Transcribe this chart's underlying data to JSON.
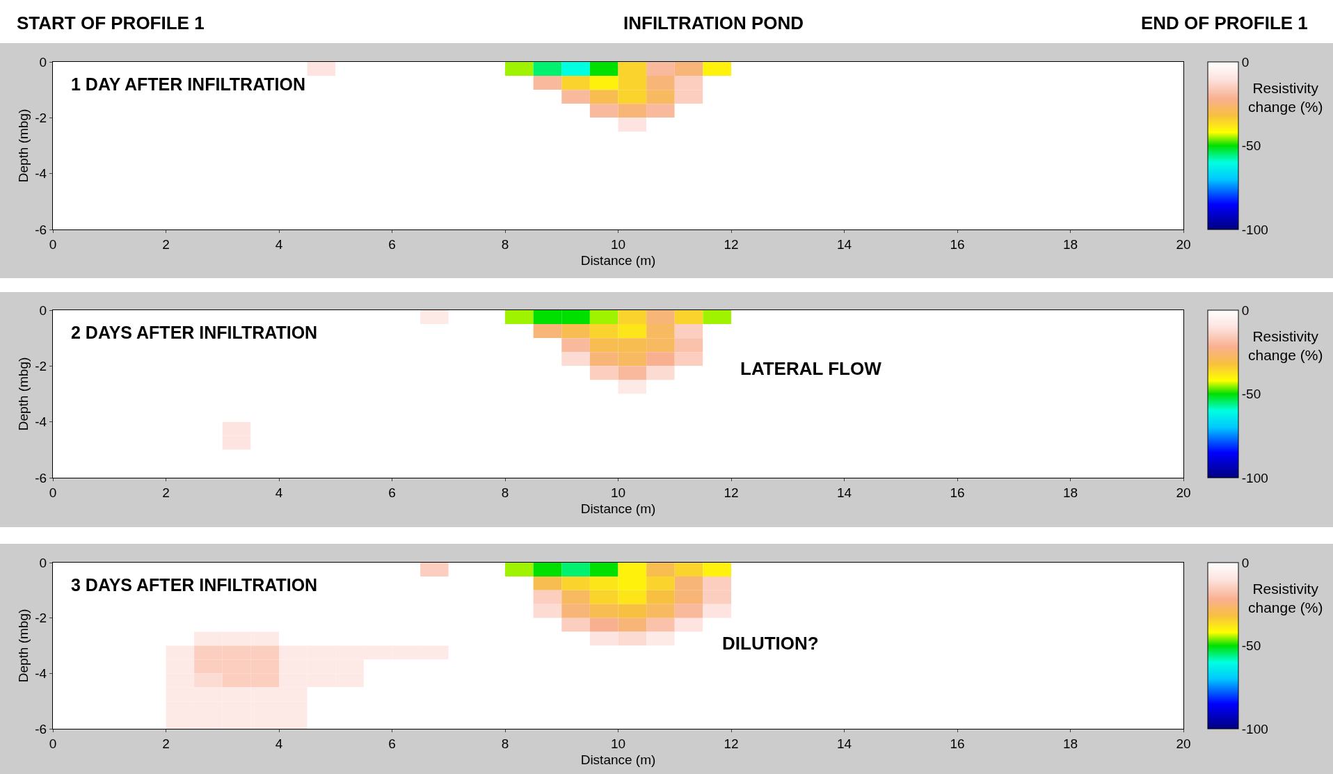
{
  "chart_data": [
    {
      "type": "heatmap",
      "title": "1 DAY AFTER INFILTRATION",
      "xlabel": "Distance (m)",
      "ylabel": "Depth (mbg)",
      "clabel": "Resistivity change (%)",
      "annotations": [
        "START OF PROFILE 1",
        "INFILTRATION POND",
        "END OF PROFILE 1"
      ],
      "x": [
        2.25,
        2.75,
        3.25,
        3.75,
        4.25,
        4.75,
        5.25,
        5.75,
        6.25,
        6.75,
        7.25,
        7.75,
        8.25,
        8.75,
        9.25,
        9.75,
        10.25,
        10.75,
        11.25,
        11.75
      ],
      "y": [
        -0.25,
        -0.75,
        -1.25,
        -1.75,
        -2.25,
        -2.75,
        -3.25,
        -3.75,
        -4.25,
        -4.75,
        -5.25,
        -5.75
      ],
      "cells": [
        [
          0,
          0,
          0,
          0,
          0,
          -10,
          0,
          0,
          0,
          0,
          0,
          0,
          -45,
          -55,
          -60,
          -50,
          -35,
          -20,
          -25,
          -40
        ],
        [
          0,
          0,
          0,
          0,
          0,
          0,
          0,
          0,
          0,
          0,
          0,
          0,
          0,
          -20,
          -35,
          -40,
          -35,
          -25,
          -15,
          0
        ],
        [
          0,
          0,
          0,
          0,
          0,
          0,
          0,
          0,
          0,
          0,
          0,
          0,
          0,
          0,
          -20,
          -30,
          -35,
          -28,
          -15,
          0
        ],
        [
          0,
          0,
          0,
          0,
          0,
          0,
          0,
          0,
          0,
          0,
          0,
          0,
          0,
          0,
          0,
          -20,
          -25,
          -20,
          0,
          0
        ],
        [
          0,
          0,
          0,
          0,
          0,
          0,
          0,
          0,
          0,
          0,
          0,
          0,
          0,
          0,
          0,
          0,
          -10,
          0,
          0,
          0
        ],
        [
          0,
          0,
          0,
          0,
          0,
          0,
          0,
          0,
          0,
          0,
          0,
          0,
          0,
          0,
          0,
          0,
          0,
          0,
          0,
          0
        ],
        [
          0,
          0,
          0,
          0,
          0,
          0,
          0,
          0,
          0,
          0,
          0,
          0,
          0,
          0,
          0,
          0,
          0,
          0,
          0,
          0
        ],
        [
          0,
          0,
          0,
          0,
          0,
          0,
          0,
          0,
          0,
          0,
          0,
          0,
          0,
          0,
          0,
          0,
          0,
          0,
          0,
          0
        ],
        [
          0,
          0,
          0,
          0,
          0,
          0,
          0,
          0,
          0,
          0,
          0,
          0,
          0,
          0,
          0,
          0,
          0,
          0,
          0,
          0
        ],
        [
          0,
          0,
          0,
          0,
          0,
          0,
          0,
          0,
          0,
          0,
          0,
          0,
          0,
          0,
          0,
          0,
          0,
          0,
          0,
          0
        ],
        [
          0,
          0,
          0,
          0,
          0,
          0,
          0,
          0,
          0,
          0,
          0,
          0,
          0,
          0,
          0,
          0,
          0,
          0,
          0,
          0
        ],
        [
          0,
          0,
          0,
          0,
          0,
          0,
          0,
          0,
          0,
          0,
          0,
          0,
          0,
          0,
          0,
          0,
          0,
          0,
          0,
          0
        ]
      ],
      "clim": [
        -100,
        0
      ],
      "cticks": [
        0,
        -50,
        -100
      ],
      "xlim": [
        0,
        20
      ],
      "xticks": [
        0,
        2,
        4,
        6,
        8,
        10,
        12,
        14,
        16,
        18,
        20
      ],
      "ylim": [
        -6,
        0
      ],
      "yticks": [
        0,
        -2,
        -4,
        -6
      ],
      "grid": false
    },
    {
      "type": "heatmap",
      "title": "2 DAYS AFTER INFILTRATION",
      "xlabel": "Distance (m)",
      "ylabel": "Depth (mbg)",
      "clabel": "Resistivity change (%)",
      "annotations": [
        "LATERAL FLOW"
      ],
      "x": [
        2.25,
        2.75,
        3.25,
        3.75,
        4.25,
        4.75,
        5.25,
        5.75,
        6.25,
        6.75,
        7.25,
        7.75,
        8.25,
        8.75,
        9.25,
        9.75,
        10.25,
        10.75,
        11.25,
        11.75
      ],
      "y": [
        -0.25,
        -0.75,
        -1.25,
        -1.75,
        -2.25,
        -2.75,
        -3.25,
        -3.75,
        -4.25,
        -4.75,
        -5.25,
        -5.75
      ],
      "cells": [
        [
          0,
          0,
          0,
          0,
          0,
          0,
          0,
          0,
          0,
          -8,
          0,
          0,
          -45,
          -50,
          -50,
          -45,
          -35,
          -25,
          -35,
          -45
        ],
        [
          0,
          0,
          0,
          0,
          0,
          0,
          0,
          0,
          0,
          0,
          0,
          0,
          0,
          -25,
          -30,
          -35,
          -38,
          -28,
          -15,
          0
        ],
        [
          0,
          0,
          0,
          0,
          0,
          0,
          0,
          0,
          0,
          0,
          0,
          0,
          0,
          0,
          -20,
          -30,
          -30,
          -28,
          -18,
          0
        ],
        [
          0,
          0,
          0,
          0,
          0,
          0,
          0,
          0,
          0,
          0,
          0,
          0,
          0,
          0,
          -12,
          -25,
          -28,
          -22,
          -15,
          0
        ],
        [
          0,
          0,
          0,
          0,
          0,
          0,
          0,
          0,
          0,
          0,
          0,
          0,
          0,
          0,
          0,
          -15,
          -20,
          -12,
          0,
          0
        ],
        [
          0,
          0,
          0,
          0,
          0,
          0,
          0,
          0,
          0,
          0,
          0,
          0,
          0,
          0,
          0,
          0,
          -8,
          0,
          0,
          0
        ],
        [
          0,
          0,
          0,
          0,
          0,
          0,
          0,
          0,
          0,
          0,
          0,
          0,
          0,
          0,
          0,
          0,
          0,
          0,
          0,
          0
        ],
        [
          0,
          0,
          0,
          0,
          0,
          0,
          0,
          0,
          0,
          0,
          0,
          0,
          0,
          0,
          0,
          0,
          0,
          0,
          0,
          0
        ],
        [
          0,
          0,
          -10,
          0,
          0,
          0,
          0,
          0,
          0,
          0,
          0,
          0,
          0,
          0,
          0,
          0,
          0,
          0,
          0,
          0
        ],
        [
          0,
          0,
          -10,
          0,
          0,
          0,
          0,
          0,
          0,
          0,
          0,
          0,
          0,
          0,
          0,
          0,
          0,
          0,
          0,
          0
        ],
        [
          0,
          0,
          0,
          0,
          0,
          0,
          0,
          0,
          0,
          0,
          0,
          0,
          0,
          0,
          0,
          0,
          0,
          0,
          0,
          0
        ],
        [
          0,
          0,
          0,
          0,
          0,
          0,
          0,
          0,
          0,
          0,
          0,
          0,
          0,
          0,
          0,
          0,
          0,
          0,
          0,
          0
        ]
      ],
      "clim": [
        -100,
        0
      ],
      "cticks": [
        0,
        -50,
        -100
      ],
      "xlim": [
        0,
        20
      ],
      "xticks": [
        0,
        2,
        4,
        6,
        8,
        10,
        12,
        14,
        16,
        18,
        20
      ],
      "ylim": [
        -6,
        0
      ],
      "yticks": [
        0,
        -2,
        -4,
        -6
      ],
      "grid": false
    },
    {
      "type": "heatmap",
      "title": "3 DAYS AFTER INFILTRATION",
      "xlabel": "Distance (m)",
      "ylabel": "Depth (mbg)",
      "clabel": "Resistivity change (%)",
      "annotations": [
        "DILUTION?"
      ],
      "x": [
        2.25,
        2.75,
        3.25,
        3.75,
        4.25,
        4.75,
        5.25,
        5.75,
        6.25,
        6.75,
        7.25,
        7.75,
        8.25,
        8.75,
        9.25,
        9.75,
        10.25,
        10.75,
        11.25,
        11.75
      ],
      "y": [
        -0.25,
        -0.75,
        -1.25,
        -1.75,
        -2.25,
        -2.75,
        -3.25,
        -3.75,
        -4.25,
        -4.75,
        -5.25,
        -5.75
      ],
      "cells": [
        [
          0,
          0,
          0,
          0,
          0,
          0,
          0,
          0,
          0,
          -15,
          0,
          0,
          -45,
          -50,
          -55,
          -50,
          -40,
          -30,
          -35,
          -40
        ],
        [
          0,
          0,
          0,
          0,
          0,
          0,
          0,
          0,
          0,
          0,
          0,
          0,
          0,
          -30,
          -35,
          -38,
          -40,
          -35,
          -25,
          -15
        ],
        [
          0,
          0,
          0,
          0,
          0,
          0,
          0,
          0,
          0,
          0,
          0,
          0,
          0,
          -15,
          -28,
          -35,
          -38,
          -32,
          -25,
          -15
        ],
        [
          0,
          0,
          0,
          0,
          0,
          0,
          0,
          0,
          0,
          0,
          0,
          0,
          0,
          -12,
          -25,
          -30,
          -32,
          -28,
          -20,
          -10
        ],
        [
          0,
          0,
          0,
          0,
          0,
          0,
          0,
          0,
          0,
          0,
          0,
          0,
          0,
          0,
          -15,
          -22,
          -25,
          -18,
          -10,
          0
        ],
        [
          0,
          -8,
          -8,
          -8,
          0,
          0,
          0,
          0,
          0,
          0,
          0,
          0,
          0,
          0,
          0,
          -10,
          -12,
          -8,
          0,
          0
        ],
        [
          -8,
          -15,
          -15,
          -15,
          -8,
          -8,
          -8,
          -8,
          -8,
          -8,
          0,
          0,
          0,
          0,
          0,
          0,
          0,
          0,
          0,
          0
        ],
        [
          -8,
          -15,
          -15,
          -15,
          -8,
          -8,
          -8,
          0,
          0,
          0,
          0,
          0,
          0,
          0,
          0,
          0,
          0,
          0,
          0,
          0
        ],
        [
          -8,
          -12,
          -15,
          -15,
          -8,
          -8,
          -8,
          0,
          0,
          0,
          0,
          0,
          0,
          0,
          0,
          0,
          0,
          0,
          0,
          0
        ],
        [
          -8,
          -8,
          -8,
          -8,
          -8,
          0,
          0,
          0,
          0,
          0,
          0,
          0,
          0,
          0,
          0,
          0,
          0,
          0,
          0,
          0
        ],
        [
          -8,
          -8,
          -8,
          -8,
          -8,
          0,
          0,
          0,
          0,
          0,
          0,
          0,
          0,
          0,
          0,
          0,
          0,
          0,
          0,
          0
        ],
        [
          -8,
          -8,
          -8,
          -8,
          -8,
          0,
          0,
          0,
          0,
          0,
          0,
          0,
          0,
          0,
          0,
          0,
          0,
          0,
          0,
          0
        ]
      ],
      "clim": [
        -100,
        0
      ],
      "cticks": [
        0,
        -50,
        -100
      ],
      "xlim": [
        0,
        20
      ],
      "xticks": [
        0,
        2,
        4,
        6,
        8,
        10,
        12,
        14,
        16,
        18,
        20
      ],
      "ylim": [
        -6,
        0
      ],
      "yticks": [
        0,
        -2,
        -4,
        -6
      ],
      "grid": false
    }
  ]
}
